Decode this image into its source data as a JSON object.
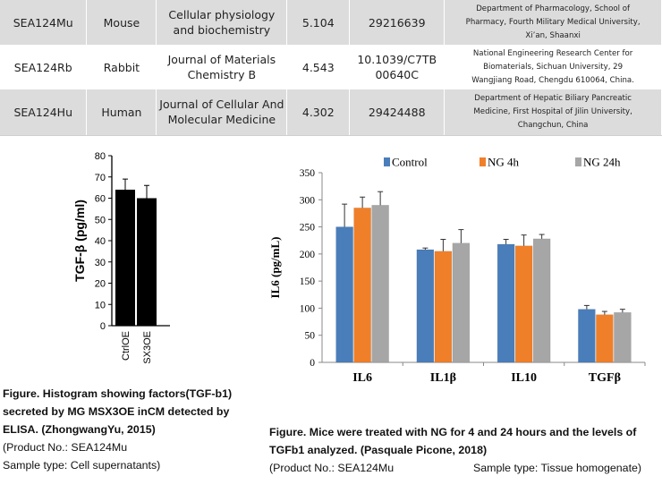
{
  "table": {
    "rows": [
      {
        "code": "SEA124Mu",
        "species": "Mouse",
        "journal_lines": [
          "Cellular physiology",
          "and biochemistry"
        ],
        "impact": "5.104",
        "pmid_lines": [
          "29216639"
        ],
        "org_lines": [
          "Department of Pharmacology, School of",
          "Pharmacy, Fourth Military Medical University,",
          "Xi’an, Shaanxi"
        ]
      },
      {
        "code": "SEA124Rb",
        "species": "Rabbit",
        "journal_lines": [
          "Journal of Materials",
          "Chemistry B"
        ],
        "impact": "4.543",
        "pmid_lines": [
          "10.1039/C7TB",
          "00640C"
        ],
        "org_lines": [
          "National Engineering Research Center for",
          "Biomaterials, Sichuan University, 29",
          "Wangjiang Road, Chengdu 610064, China."
        ]
      },
      {
        "code": "SEA124Hu",
        "species": "Human",
        "journal_lines": [
          "Journal of Cellular And",
          "Molecular Medicine"
        ],
        "impact": "4.302",
        "pmid_lines": [
          "29424488"
        ],
        "org_lines": [
          "Department of Hepatic Biliary Pancreatic",
          "Medicine, First Hospital of Jilin University,",
          "Changchun, China"
        ]
      }
    ]
  },
  "chart_data": [
    {
      "type": "bar",
      "ylabel": "TGF-β (pg/ml)",
      "ylim": [
        0,
        80
      ],
      "yticks": [
        "0",
        "10",
        "20",
        "30",
        "40",
        "50",
        "60",
        "70",
        "80"
      ],
      "categories": [
        "CtrlOE",
        "SX3OE"
      ],
      "values": [
        64,
        60
      ],
      "errors": [
        5,
        6
      ],
      "bar_color": "#000000"
    },
    {
      "type": "bar",
      "ylabel": "IL6 (pg/mL)",
      "ylim": [
        0,
        350
      ],
      "yticks": [
        "0",
        "50",
        "100",
        "150",
        "200",
        "250",
        "300",
        "350"
      ],
      "categories": [
        "IL6",
        "IL1β",
        "IL10",
        "TGFβ"
      ],
      "legend_position": "top",
      "series": [
        {
          "name": "Control",
          "color": "#4a7ebb",
          "values": [
            250,
            208,
            218,
            98
          ],
          "errors": [
            42,
            3,
            9,
            7
          ]
        },
        {
          "name": "NG 4h",
          "color": "#f07f2a",
          "values": [
            285,
            205,
            215,
            88
          ],
          "errors": [
            20,
            22,
            20,
            6
          ]
        },
        {
          "name": "NG 24h",
          "color": "#a6a6a6",
          "values": [
            290,
            220,
            228,
            92
          ],
          "errors": [
            25,
            25,
            8,
            6
          ]
        }
      ]
    }
  ],
  "left_caption": {
    "bold": "Figure. Histogram showing factors(TGF-b1) secreted by MG MSX3OE inCM detected by ELISA. (ZhongwangYu, 2015)",
    "product": "(Product No.: SEA124Mu",
    "sample": "Sample type: Cell supernatants)"
  },
  "right_caption": {
    "bold": "Figure. Mice were treated with NG for 4 and 24 hours and the levels of TGFb1 analyzed. (Pasquale Picone, 2018)",
    "product": "(Product No.: SEA124Mu",
    "sample": "Sample type: Tissue homogenate)"
  }
}
